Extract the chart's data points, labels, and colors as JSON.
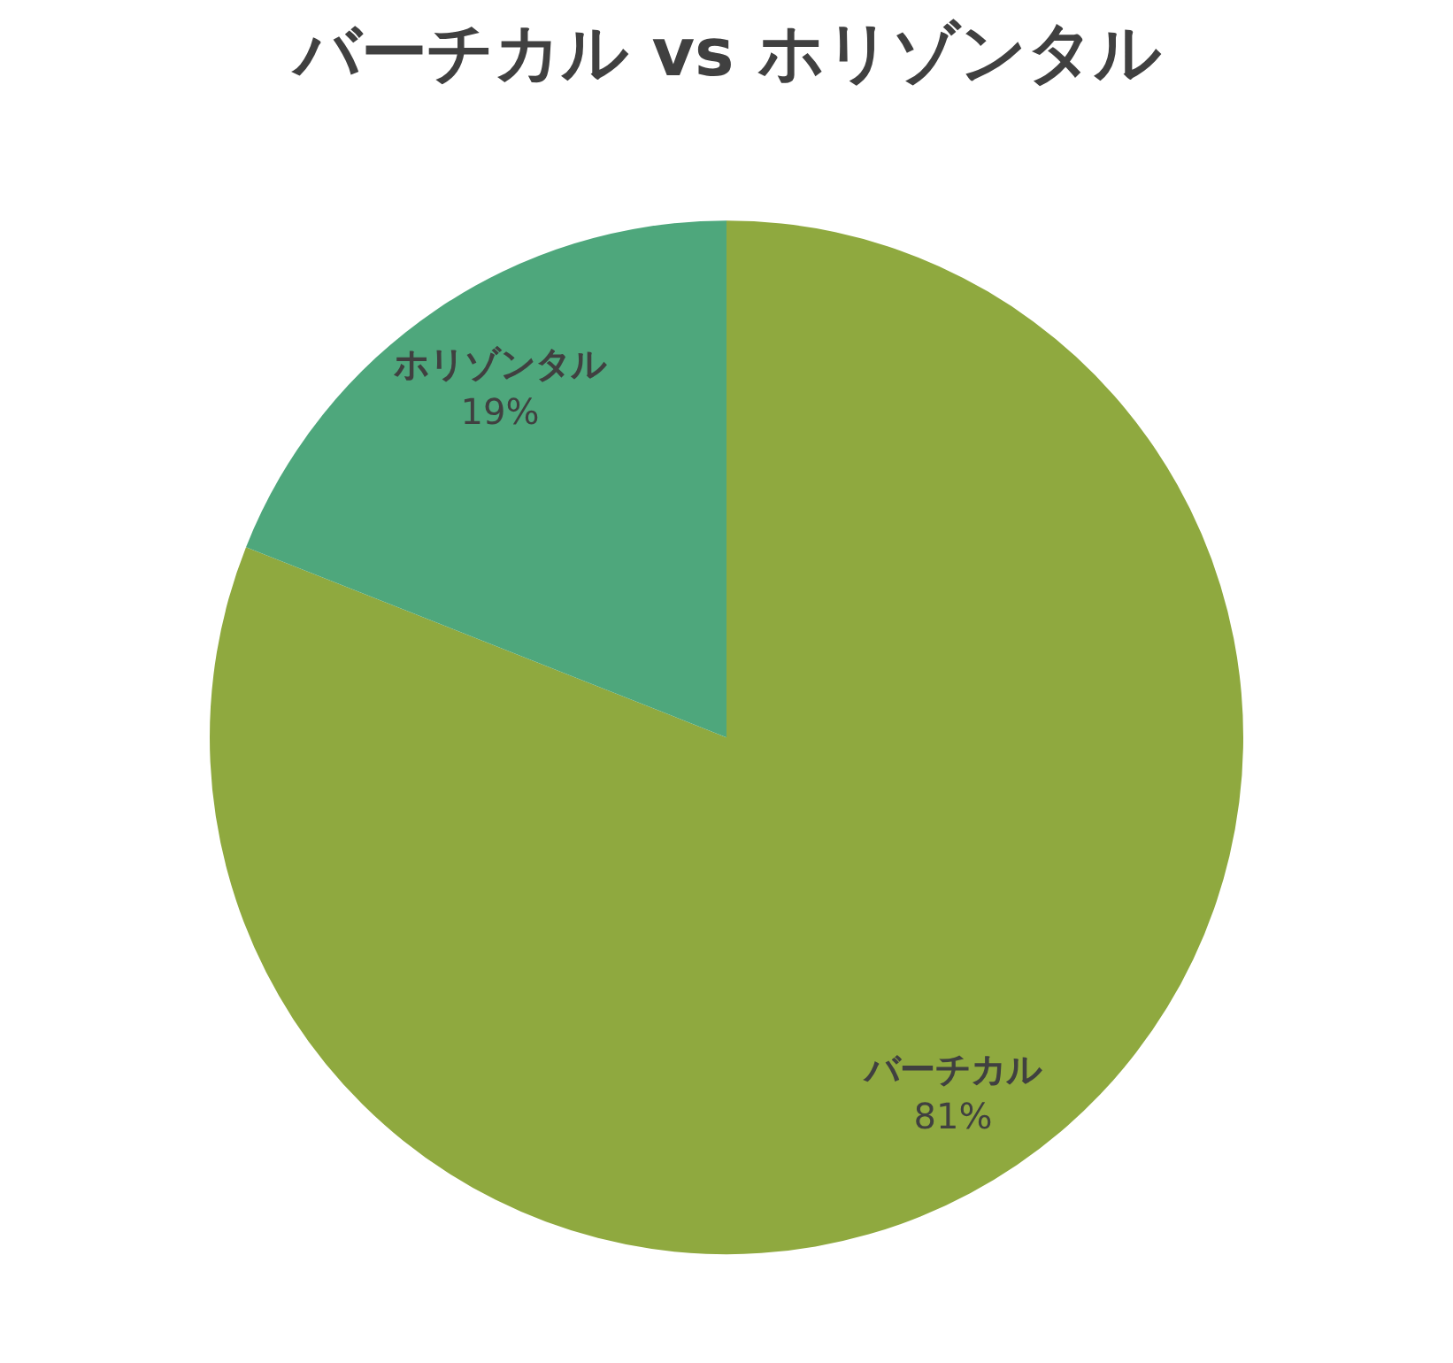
{
  "chart_data": {
    "type": "pie",
    "title": "バーチカル vs ホリゾンタル",
    "categories": [
      "バーチカル",
      "ホリゾンタル"
    ],
    "values": [
      81,
      19
    ],
    "colors": [
      "#8fa93f",
      "#4ea77c"
    ],
    "value_labels": [
      "81%",
      "19%"
    ]
  }
}
